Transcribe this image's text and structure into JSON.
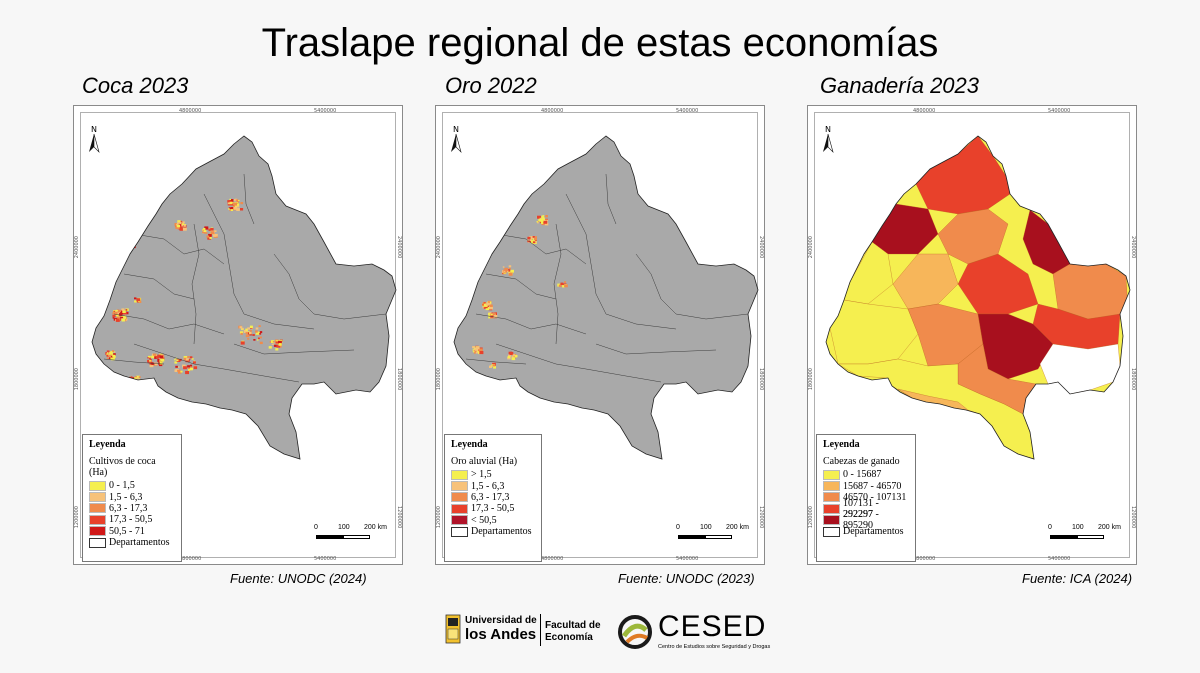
{
  "title": "Traslape regional de estas economías",
  "maps": [
    {
      "heading": "Coca 2023",
      "legend_title": "Leyenda",
      "legend_subtitle": "Cultivos de coca (Ha)",
      "legend_items": [
        {
          "label": "0 - 1,5",
          "color": "#f5ef4f"
        },
        {
          "label": "1,5 - 6,3",
          "color": "#f7c27a"
        },
        {
          "label": "6,3 - 17,3",
          "color": "#f08b4c"
        },
        {
          "label": "17,3 - 50,5",
          "color": "#e8412b"
        },
        {
          "label": "50,5 - 71",
          "color": "#d01818"
        },
        {
          "label": "Departamentos",
          "color": "#ffffff"
        }
      ],
      "scale": {
        "l0": "0",
        "l1": "100",
        "l2": "200 km"
      },
      "ticks": {
        "t1": "4800000",
        "t2": "5400000",
        "l1": "2400000",
        "l2": "1800000",
        "l3": "1200000"
      },
      "source": "Fuente: UNODC (2024)"
    },
    {
      "heading": "Oro 2022",
      "legend_title": "Leyenda",
      "legend_subtitle": "Oro aluvial (Ha)",
      "legend_items": [
        {
          "label": "> 1,5",
          "color": "#f5ef4f"
        },
        {
          "label": "1,5 - 6,3",
          "color": "#f7c27a"
        },
        {
          "label": "6,3 - 17,3",
          "color": "#f08b4c"
        },
        {
          "label": "17,3 - 50,5",
          "color": "#e8412b"
        },
        {
          "label": "< 50,5",
          "color": "#b0142a"
        },
        {
          "label": "Departamentos",
          "color": "#ffffff"
        }
      ],
      "scale": {
        "l0": "0",
        "l1": "100",
        "l2": "200 km"
      },
      "ticks": {
        "t1": "4800000",
        "t2": "5400000",
        "l1": "2400000",
        "l2": "1800000",
        "l3": "1200000"
      },
      "source": "Fuente: UNODC (2023)"
    },
    {
      "heading": "Ganadería 2023",
      "legend_title": "Leyenda",
      "legend_subtitle": "Cabezas de ganado",
      "legend_items": [
        {
          "label": "0 - 15687",
          "color": "#f5ef4f"
        },
        {
          "label": "15687 - 46570",
          "color": "#f7b65a"
        },
        {
          "label": "46570 - 107131",
          "color": "#f08b4c"
        },
        {
          "label": "107131 - 292297",
          "color": "#e8412b"
        },
        {
          "label": "292297 - 895290",
          "color": "#a8101e"
        },
        {
          "label": "Departamentos",
          "color": "#ffffff"
        }
      ],
      "scale": {
        "l0": "0",
        "l1": "100",
        "l2": "200 km"
      },
      "ticks": {
        "t1": "4800000",
        "t2": "5400000",
        "l1": "2400000",
        "l2": "1800000",
        "l3": "1200000"
      },
      "source": "Fuente: ICA (2024)"
    }
  ],
  "logos": {
    "uandes_line1": "Universidad de",
    "uandes_line2": "los Andes",
    "faculty_line1": "Facultad de",
    "faculty_line2": "Economía",
    "ceded_name": "CESED",
    "ceded_sub": "Centro de Estudios sobre Seguridad y Drogas"
  },
  "colors": {
    "land": "#a9a9a9",
    "border": "#3c3c3c"
  }
}
